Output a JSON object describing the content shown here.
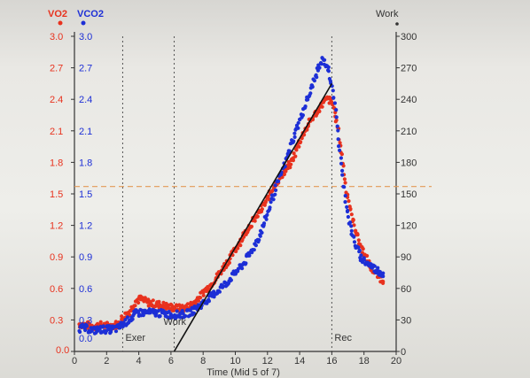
{
  "chart_data": {
    "type": "scatter",
    "xlabel": "Time (Mid 5 of 7)",
    "xlim": [
      0,
      20
    ],
    "x_ticks": [
      "0",
      "2",
      "4",
      "6",
      "8",
      "10",
      "12",
      "14",
      "16",
      "18",
      "20"
    ],
    "left_axis": {
      "legend_vo2": "VO2",
      "legend_vco2": "VCO2",
      "ylim": [
        0.0,
        3.0
      ],
      "vo2_ticks": [
        "0.0",
        "0.3",
        "0.6",
        "0.9",
        "1.2",
        "1.5",
        "1.8",
        "2.1",
        "2.4",
        "2.7",
        "3.0"
      ],
      "vco2_ticks": [
        "0.0",
        "0.3",
        "0.6",
        "0.9",
        "1.2",
        "1.5",
        "1.8",
        "2.1",
        "2.4",
        "2.7",
        "3.0"
      ]
    },
    "right_axis": {
      "label": "Work",
      "ylim": [
        0,
        300
      ],
      "ticks": [
        "0",
        "30",
        "60",
        "90",
        "120",
        "150",
        "180",
        "210",
        "240",
        "270",
        "300"
      ]
    },
    "series": [
      {
        "name": "VO2",
        "color": "#e8321e",
        "axis": "left",
        "x": [
          0.3,
          0.7,
          1.2,
          1.7,
          2.2,
          2.7,
          3.0,
          3.3,
          3.6,
          3.8,
          4.1,
          4.5,
          5.0,
          5.5,
          6.0,
          6.5,
          7.0,
          7.5,
          8.0,
          8.5,
          9.0,
          9.5,
          10.0,
          10.5,
          11.0,
          11.5,
          12.0,
          12.5,
          13.0,
          13.5,
          14.0,
          14.5,
          15.0,
          15.4,
          15.7,
          16.0,
          16.3,
          16.6,
          16.9,
          17.2,
          17.5,
          17.8,
          18.1,
          18.4,
          18.7,
          19.0,
          19.2
        ],
        "y": [
          0.26,
          0.25,
          0.24,
          0.25,
          0.24,
          0.26,
          0.32,
          0.36,
          0.42,
          0.48,
          0.5,
          0.47,
          0.45,
          0.44,
          0.42,
          0.41,
          0.42,
          0.47,
          0.56,
          0.64,
          0.74,
          0.85,
          0.97,
          1.1,
          1.22,
          1.32,
          1.45,
          1.6,
          1.7,
          1.8,
          2.0,
          2.15,
          2.27,
          2.35,
          2.4,
          2.38,
          2.2,
          1.9,
          1.55,
          1.3,
          1.15,
          1.0,
          0.9,
          0.8,
          0.75,
          0.7,
          0.68
        ]
      },
      {
        "name": "VCO2",
        "color": "#1d2fd6",
        "axis": "left",
        "x": [
          0.3,
          0.7,
          1.2,
          1.7,
          2.2,
          2.7,
          3.0,
          3.3,
          3.6,
          3.8,
          4.1,
          4.5,
          5.0,
          5.5,
          6.0,
          6.5,
          7.0,
          7.5,
          8.0,
          8.5,
          9.0,
          9.5,
          10.0,
          10.5,
          11.0,
          11.5,
          12.0,
          12.5,
          13.0,
          13.5,
          14.0,
          14.5,
          15.0,
          15.4,
          15.7,
          16.0,
          16.3,
          16.6,
          16.9,
          17.2,
          17.5,
          17.8,
          18.1,
          18.4,
          18.7,
          19.0,
          19.2
        ],
        "y": [
          0.22,
          0.22,
          0.2,
          0.21,
          0.21,
          0.22,
          0.26,
          0.29,
          0.33,
          0.36,
          0.37,
          0.37,
          0.37,
          0.36,
          0.35,
          0.35,
          0.36,
          0.4,
          0.46,
          0.52,
          0.59,
          0.66,
          0.75,
          0.83,
          0.95,
          1.1,
          1.3,
          1.55,
          1.75,
          1.98,
          2.2,
          2.4,
          2.62,
          2.78,
          2.72,
          2.55,
          2.2,
          1.75,
          1.4,
          1.15,
          1.0,
          0.9,
          0.85,
          0.82,
          0.78,
          0.76,
          0.74
        ]
      },
      {
        "name": "Work",
        "color": "#1a1a1a",
        "axis": "right",
        "kind": "line",
        "x": [
          6.2,
          16.0
        ],
        "y": [
          0,
          255
        ]
      }
    ],
    "reference_lines": [
      {
        "orientation": "vertical",
        "x": 3.0,
        "label": "Exer"
      },
      {
        "orientation": "vertical",
        "x": 6.2,
        "label": "Work"
      },
      {
        "orientation": "vertical",
        "x": 16.0,
        "label": "Rec"
      },
      {
        "orientation": "horizontal",
        "axis": "left",
        "y": 1.57,
        "color": "#e39a55"
      }
    ],
    "grid": false,
    "legend_placement": "top-left"
  }
}
